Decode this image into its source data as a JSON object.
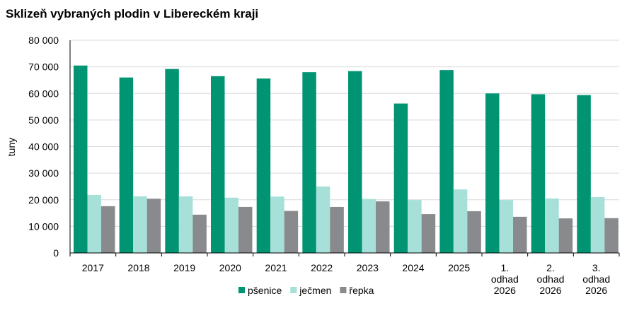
{
  "chart_data": {
    "type": "bar",
    "title": "Sklizeň vybraných plodin v Libereckém kraji",
    "ylabel": "tuny",
    "xlabel": "",
    "ylim": [
      0,
      80000
    ],
    "yticks": [
      "0",
      "10 000",
      "20 000",
      "30 000",
      "40 000",
      "50 000",
      "60 000",
      "70 000",
      "80 000"
    ],
    "categories": [
      [
        "2017"
      ],
      [
        "2018"
      ],
      [
        "2019"
      ],
      [
        "2020"
      ],
      [
        "2021"
      ],
      [
        "2022"
      ],
      [
        "2023"
      ],
      [
        "2024"
      ],
      [
        "2025"
      ],
      [
        "1.",
        "odhad",
        "2026"
      ],
      [
        "2.",
        "odhad",
        "2026"
      ],
      [
        "3.",
        "odhad",
        "2026"
      ]
    ],
    "series": [
      {
        "name": "pšenice",
        "color": "#009473",
        "values": [
          70500,
          66000,
          69200,
          66500,
          65600,
          68000,
          68400,
          56200,
          68800,
          60000,
          59700,
          59400
        ]
      },
      {
        "name": "ječmen",
        "color": "#a7e0d9",
        "values": [
          21800,
          21300,
          21300,
          20800,
          21200,
          25000,
          20300,
          19900,
          23900,
          19900,
          20500,
          21000
        ]
      },
      {
        "name": "řepka",
        "color": "#898a8d",
        "values": [
          17600,
          20400,
          14400,
          17300,
          15800,
          17300,
          19400,
          14600,
          15700,
          13600,
          13000,
          13100
        ]
      }
    ],
    "grid": true,
    "legend_position": "bottom"
  }
}
